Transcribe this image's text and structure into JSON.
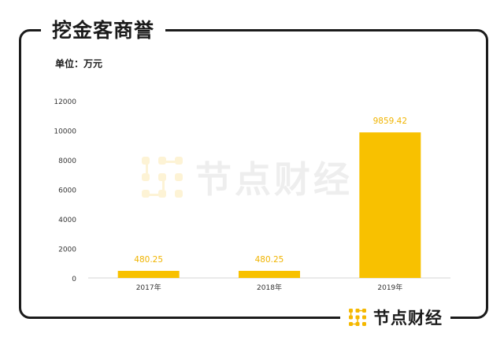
{
  "header": {
    "title": "挖金客商誉"
  },
  "chart_meta": {
    "unit_label": "单位：万元"
  },
  "brand": {
    "name": "节点财经",
    "icon": "node-logo-icon",
    "color": "#f5b800"
  },
  "watermark": {
    "text": "节点财经"
  },
  "colors": {
    "bar": "#f8c100",
    "label": "#f0b400",
    "axis": "#d6d6d6",
    "text": "#333333"
  },
  "chart_data": {
    "type": "bar",
    "title": "挖金客商誉",
    "categories": [
      "2017年",
      "2018年",
      "2019年"
    ],
    "values": [
      480.25,
      480.25,
      9859.42
    ],
    "value_labels": [
      "480.25",
      "480.25",
      "9859.42"
    ],
    "yticks": [
      "0",
      "2000",
      "4000",
      "6000",
      "8000",
      "10000",
      "12000"
    ],
    "ylim": [
      0,
      12000
    ],
    "ylabel": "",
    "xlabel": "",
    "grid": false
  }
}
